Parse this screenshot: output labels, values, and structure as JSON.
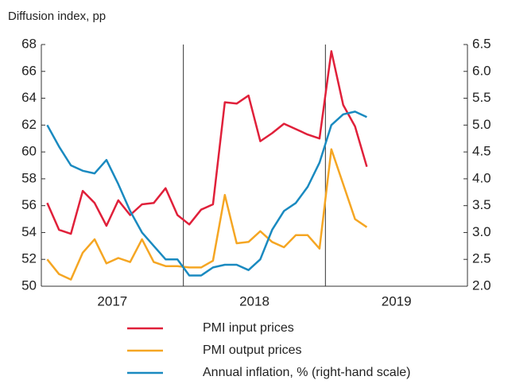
{
  "chart_data": {
    "type": "line",
    "ylabel": "Diffusion index, pp",
    "xlabels": [
      "2017",
      "2018",
      "2019"
    ],
    "ylim": [
      50,
      68
    ],
    "yticks": [
      50,
      52,
      54,
      56,
      58,
      60,
      62,
      64,
      66,
      68
    ],
    "y2lim": [
      2,
      6.5
    ],
    "y2ticks": [
      {
        "value": 2,
        "label": "2.0"
      },
      2.5,
      {
        "value": 3,
        "label": "3.0"
      },
      3.5,
      {
        "value": 4,
        "label": "4.0"
      },
      4.5,
      {
        "value": 5,
        "label": "5.0"
      },
      5.5,
      {
        "value": 6,
        "label": "6.0"
      },
      6.5
    ],
    "series": [
      {
        "name": "PMI input prices",
        "color": "#e0203a",
        "values": [
          56.2,
          54.2,
          53.9,
          57.1,
          56.2,
          54.5,
          56.4,
          55.3,
          56.1,
          56.2,
          57.3,
          55.3,
          54.6,
          55.7,
          56.1,
          63.7,
          63.6,
          64.2,
          60.8,
          61.4,
          62.1,
          61.7,
          61.3,
          61.0,
          67.5,
          63.5,
          61.9,
          58.9
        ]
      },
      {
        "name": "PMI output prices",
        "color": "#f5a623",
        "values": [
          52.0,
          50.9,
          50.5,
          52.5,
          53.5,
          51.7,
          52.1,
          51.8,
          53.5,
          51.8,
          51.5,
          51.5,
          51.4,
          51.4,
          51.9,
          56.8,
          53.2,
          53.3,
          54.1,
          53.3,
          52.9,
          53.8,
          53.8,
          52.8,
          60.2,
          57.6,
          55.0,
          54.4
        ]
      },
      {
        "name": "Annual inflation, % (right-hand scale)",
        "color": "#1a8ac0",
        "axis": "y2",
        "values": [
          5.0,
          4.6,
          4.25,
          4.15,
          4.1,
          4.35,
          3.9,
          3.4,
          3.0,
          2.75,
          2.5,
          2.5,
          2.2,
          2.2,
          2.35,
          2.4,
          2.4,
          2.3,
          2.5,
          3.05,
          3.4,
          3.55,
          3.85,
          4.3,
          5.0,
          5.2,
          5.25,
          5.15
        ]
      }
    ]
  }
}
